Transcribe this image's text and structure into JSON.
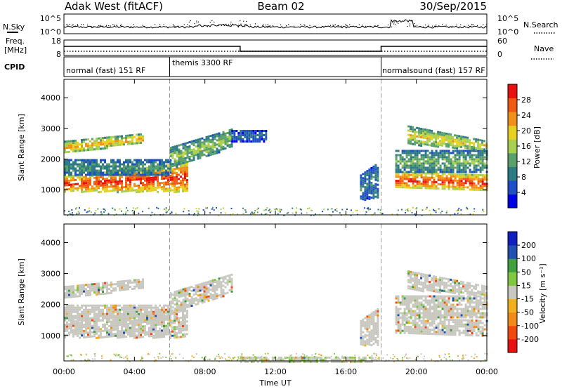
{
  "header": {
    "station": "Adak West (fitACF)",
    "beam": "Beam 02",
    "date": "30/Sep/2015"
  },
  "noise_panel": {
    "left_label": "N.Sky",
    "right_label": "N.Search",
    "left_ticks": [
      "10^5",
      "10^0"
    ],
    "right_ticks": [
      "10^5",
      "10^0"
    ]
  },
  "freq_panel": {
    "left_label_line1": "Freq.",
    "left_label_line2": "[MHz]",
    "left_ticks": [
      "18",
      "8"
    ],
    "right_label": "Nave",
    "right_ticks": [
      "60",
      "0"
    ]
  },
  "cpid": {
    "label": "CPID",
    "segments": [
      {
        "name": "normal (fast) 151 RF",
        "start_hour": 0,
        "end_hour": 6
      },
      {
        "name": "themis 3300 RF",
        "start_hour": 6,
        "end_hour": 18
      },
      {
        "name": "normalsound (fast) 157 RF",
        "start_hour": 18,
        "end_hour": 24
      }
    ]
  },
  "chart_data": [
    {
      "type": "heatmap",
      "parameter": "Power",
      "ylabel": "Slant Range [km]",
      "yticks": [
        1000,
        2000,
        3000,
        4000
      ],
      "ylim": [
        180,
        4600
      ],
      "xlim": [
        0,
        24
      ],
      "colorbar": {
        "label": "Power [dB]",
        "ticks": [
          "28",
          "24",
          "20",
          "16",
          "12",
          "8",
          "4"
        ],
        "range": [
          0,
          32
        ],
        "colors": [
          "#0000e6",
          "#1f4fc8",
          "#2e7b86",
          "#5aa06a",
          "#a8d050",
          "#e8d020",
          "#f09018",
          "#f05a10",
          "#e81010"
        ]
      },
      "regions": [
        {
          "t0": 0.0,
          "t1": 7.0,
          "r0": 950,
          "r1": 1450,
          "r1_end": 1900,
          "value": 30
        },
        {
          "t0": 6.0,
          "t1": 9.5,
          "r0": 1700,
          "r1": 2400,
          "r0_end": 2400,
          "r1_end": 3000,
          "value": 16
        },
        {
          "t0": 0.0,
          "t1": 4.5,
          "r0": 2200,
          "r1": 2600,
          "r0_end": 2550,
          "r1_end": 2850,
          "value": 22
        },
        {
          "t0": 0.0,
          "t1": 6.0,
          "r0": 1500,
          "r1": 2000,
          "value": 12
        },
        {
          "t0": 9.5,
          "t1": 11.5,
          "r0": 2600,
          "r1": 2950,
          "value": 8
        },
        {
          "t0": 16.8,
          "t1": 17.8,
          "r0": 700,
          "r1": 1500,
          "r1_end": 1900,
          "value": 10
        },
        {
          "t0": 18.8,
          "t1": 24.0,
          "r0": 1100,
          "r1": 1600,
          "r0_end": 1000,
          "r1_end": 1500,
          "value": 30
        },
        {
          "t0": 18.8,
          "t1": 24.0,
          "r0": 1600,
          "r1": 2300,
          "value": 14
        },
        {
          "t0": 19.5,
          "t1": 24.0,
          "r0": 2500,
          "r1": 3100,
          "r0_end": 2300,
          "r1_end": 2600,
          "value": 20
        }
      ]
    },
    {
      "type": "heatmap",
      "parameter": "Velocity",
      "ylabel": "Slant Range [km]",
      "yticks": [
        1000,
        2000,
        3000,
        4000
      ],
      "ylim": [
        180,
        4600
      ],
      "xlim": [
        0,
        24
      ],
      "xticks": [
        "00:00",
        "04:00",
        "08:00",
        "12:00",
        "16:00",
        "20:00",
        "00:00"
      ],
      "xlabel": "Time UT",
      "colorbar": {
        "label": "Velocity [m s⁻¹]",
        "ticks": [
          "200",
          "100",
          "50",
          "15",
          "-15",
          "-50",
          "-100",
          "-200"
        ],
        "range": [
          -250,
          250
        ],
        "colors": [
          "#e81010",
          "#f04a10",
          "#f08a18",
          "#f0b020",
          "#c8c8c0",
          "#80c840",
          "#40a040",
          "#2050b0",
          "#1020c0"
        ]
      },
      "regions": [
        {
          "t0": 0.0,
          "t1": 7.0,
          "r0": 950,
          "r1": 1450,
          "r1_end": 1900,
          "value": 0
        },
        {
          "t0": 6.0,
          "t1": 9.5,
          "r0": 1700,
          "r1": 2400,
          "r0_end": 2400,
          "r1_end": 3000,
          "value": 0
        },
        {
          "t0": 0.0,
          "t1": 4.5,
          "r0": 2200,
          "r1": 2600,
          "r0_end": 2550,
          "r1_end": 2850,
          "value": 0
        },
        {
          "t0": 0.0,
          "t1": 6.0,
          "r0": 1500,
          "r1": 2000,
          "value": 0
        },
        {
          "t0": 16.8,
          "t1": 17.8,
          "r0": 700,
          "r1": 1500,
          "r1_end": 1900,
          "value": 0
        },
        {
          "t0": 18.8,
          "t1": 24.0,
          "r0": 1100,
          "r1": 1600,
          "r0_end": 1000,
          "r1_end": 1500,
          "value": 0
        },
        {
          "t0": 18.8,
          "t1": 24.0,
          "r0": 1600,
          "r1": 2300,
          "value": 0
        },
        {
          "t0": 19.5,
          "t1": 24.0,
          "r0": 2500,
          "r1": 3100,
          "r0_end": 2300,
          "r1_end": 2600,
          "value": 0
        },
        {
          "t0": 10.0,
          "t1": 17.5,
          "r0": 180,
          "r1": 320,
          "value": 25
        }
      ]
    }
  ]
}
